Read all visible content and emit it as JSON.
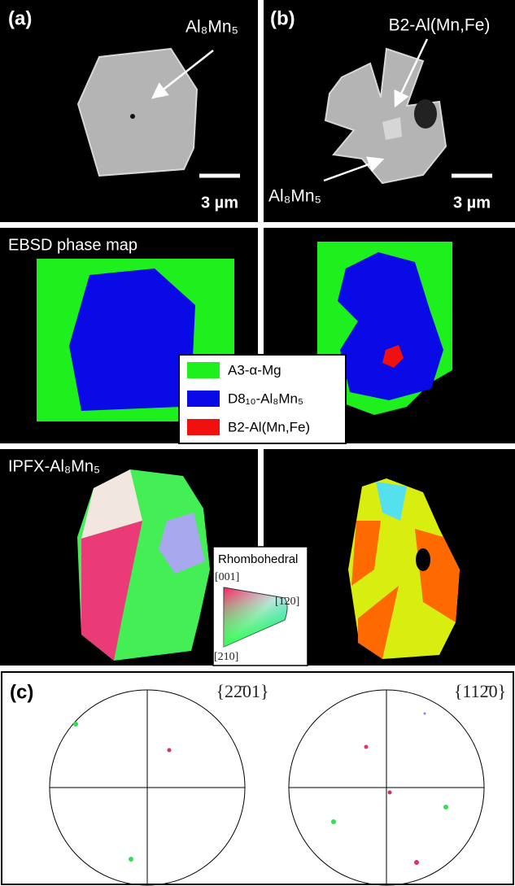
{
  "panel_a": {
    "label": "(a)",
    "annotation": "Al₈Mn₅",
    "scale_bar": "3 µm"
  },
  "panel_b": {
    "label": "(b)",
    "annotations": [
      "B2-Al(Mn,Fe)",
      "Al₈Mn₅"
    ],
    "scale_bar": "3 µm"
  },
  "phase_map": {
    "title": "EBSD phase map",
    "legend": [
      "A3-α-Mg",
      "D8₁₀-Al₈Mn₅",
      "B2-Al(Mn,Fe)"
    ]
  },
  "ipf_map": {
    "title": "IPFX-Al₈Mn₅",
    "key": {
      "title": "Rhombohedral",
      "corners": [
        "[001]",
        "[120]",
        "[210]"
      ]
    }
  },
  "panel_c": {
    "label": "(c)",
    "pole_figures": [
      "{22̄01}",
      "{112̄0}"
    ]
  }
}
